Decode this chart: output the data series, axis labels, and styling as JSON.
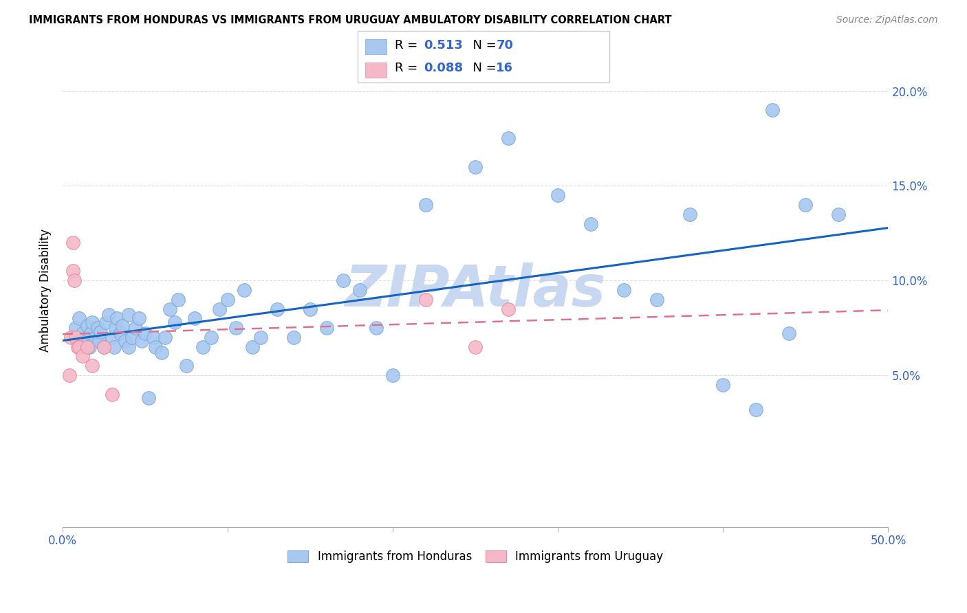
{
  "title": "IMMIGRANTS FROM HONDURAS VS IMMIGRANTS FROM URUGUAY AMBULATORY DISABILITY CORRELATION CHART",
  "source": "Source: ZipAtlas.com",
  "ylabel": "Ambulatory Disability",
  "xlim": [
    0,
    0.5
  ],
  "ylim": [
    -0.03,
    0.22
  ],
  "xticks": [
    0.0,
    0.1,
    0.2,
    0.3,
    0.4,
    0.5
  ],
  "xtick_labels": [
    "0.0%",
    "",
    "",
    "",
    "",
    "50.0%"
  ],
  "yticks": [
    0.05,
    0.1,
    0.15,
    0.2
  ],
  "ytick_labels": [
    "5.0%",
    "10.0%",
    "15.0%",
    "20.0%"
  ],
  "blue_color": "#A8C8F0",
  "blue_edge_color": "#7AAAE0",
  "pink_color": "#F5B8C8",
  "pink_edge_color": "#E88AA0",
  "blue_line_color": "#1565C0",
  "pink_line_color": "#E07090",
  "grid_color": "#DDDDDD",
  "watermark": "ZIPAtlas",
  "watermark_color": "#C8D8F0",
  "blue_x": [
    0.008,
    0.01,
    0.012,
    0.013,
    0.015,
    0.015,
    0.016,
    0.017,
    0.018,
    0.02,
    0.021,
    0.022,
    0.023,
    0.025,
    0.026,
    0.028,
    0.03,
    0.031,
    0.032,
    0.033,
    0.035,
    0.036,
    0.038,
    0.04,
    0.04,
    0.042,
    0.044,
    0.046,
    0.048,
    0.05,
    0.052,
    0.055,
    0.056,
    0.06,
    0.062,
    0.065,
    0.068,
    0.07,
    0.075,
    0.08,
    0.085,
    0.09,
    0.095,
    0.1,
    0.105,
    0.11,
    0.115,
    0.12,
    0.13,
    0.14,
    0.15,
    0.16,
    0.17,
    0.18,
    0.19,
    0.2,
    0.22,
    0.25,
    0.27,
    0.3,
    0.32,
    0.34,
    0.36,
    0.38,
    0.4,
    0.42,
    0.43,
    0.44,
    0.45,
    0.47
  ],
  "blue_y": [
    0.075,
    0.08,
    0.072,
    0.068,
    0.07,
    0.076,
    0.065,
    0.072,
    0.078,
    0.07,
    0.075,
    0.068,
    0.073,
    0.065,
    0.078,
    0.082,
    0.07,
    0.065,
    0.075,
    0.08,
    0.072,
    0.076,
    0.068,
    0.065,
    0.082,
    0.07,
    0.075,
    0.08,
    0.068,
    0.072,
    0.038,
    0.07,
    0.065,
    0.062,
    0.07,
    0.085,
    0.078,
    0.09,
    0.055,
    0.08,
    0.065,
    0.07,
    0.085,
    0.09,
    0.075,
    0.095,
    0.065,
    0.07,
    0.085,
    0.07,
    0.085,
    0.075,
    0.1,
    0.095,
    0.075,
    0.05,
    0.14,
    0.16,
    0.175,
    0.145,
    0.13,
    0.095,
    0.09,
    0.135,
    0.045,
    0.032,
    0.19,
    0.072,
    0.14,
    0.135
  ],
  "pink_x": [
    0.004,
    0.005,
    0.006,
    0.006,
    0.007,
    0.008,
    0.009,
    0.01,
    0.012,
    0.015,
    0.018,
    0.025,
    0.03,
    0.22,
    0.25,
    0.27
  ],
  "pink_y": [
    0.05,
    0.07,
    0.12,
    0.105,
    0.1,
    0.07,
    0.065,
    0.065,
    0.06,
    0.065,
    0.055,
    0.065,
    0.04,
    0.09,
    0.065,
    0.085
  ]
}
